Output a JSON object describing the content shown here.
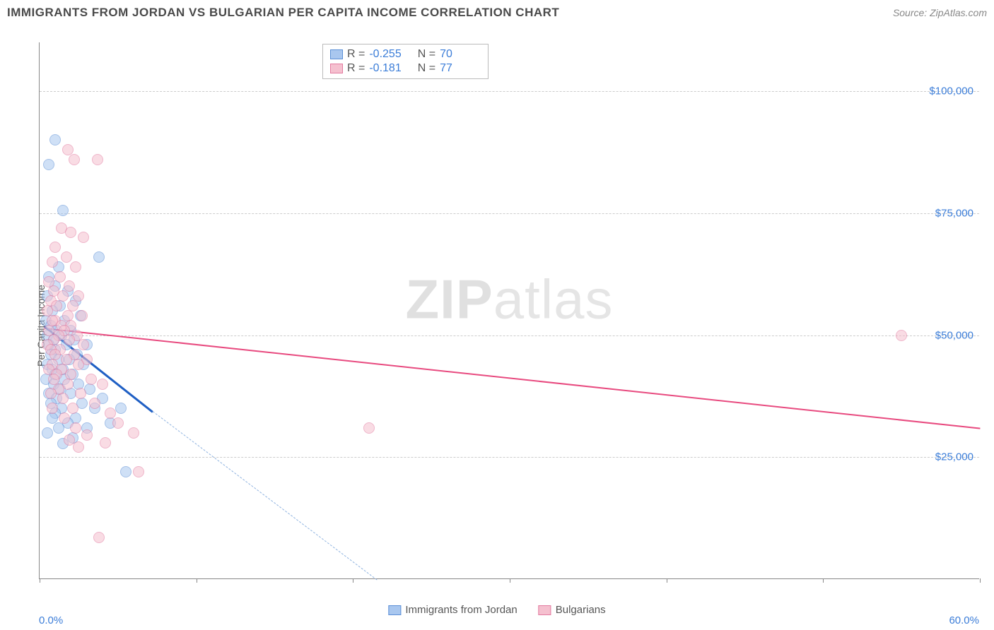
{
  "title": "IMMIGRANTS FROM JORDAN VS BULGARIAN PER CAPITA INCOME CORRELATION CHART",
  "source": "Source: ZipAtlas.com",
  "ylabel": "Per Capita Income",
  "watermark_a": "ZIP",
  "watermark_b": "atlas",
  "chart": {
    "type": "scatter",
    "xlim": [
      0,
      60
    ],
    "ylim": [
      0,
      110000
    ],
    "x_min_label": "0.0%",
    "x_max_label": "60.0%",
    "y_ticks": [
      25000,
      50000,
      75000,
      100000
    ],
    "y_tick_labels": [
      "$25,000",
      "$50,000",
      "$75,000",
      "$100,000"
    ],
    "x_ticks": [
      0,
      10,
      20,
      30,
      40,
      50,
      60
    ],
    "grid_color": "#cccccc",
    "axis_color": "#888888",
    "background_color": "#ffffff",
    "point_radius": 8,
    "point_opacity": 0.55,
    "series": [
      {
        "name": "Immigrants from Jordan",
        "fill": "#a9c7ef",
        "stroke": "#5b8fd6",
        "trend_color": "#1f5fc4",
        "trend_dash_color": "#8fb3e0",
        "R": "-0.255",
        "N": "70",
        "trend_solid": {
          "x1": 0.3,
          "y1": 52000,
          "x2": 7.2,
          "y2": 34500
        },
        "trend_dash": {
          "x1": 7.2,
          "y1": 34500,
          "x2": 21.5,
          "y2": 0
        },
        "points": [
          [
            1.0,
            90000
          ],
          [
            0.6,
            85000
          ],
          [
            1.5,
            75500
          ],
          [
            3.8,
            66000
          ],
          [
            1.2,
            64000
          ],
          [
            0.6,
            62000
          ],
          [
            1.0,
            60000
          ],
          [
            1.8,
            59000
          ],
          [
            0.5,
            58000
          ],
          [
            2.3,
            57000
          ],
          [
            1.3,
            56000
          ],
          [
            0.8,
            55000
          ],
          [
            2.6,
            54000
          ],
          [
            0.4,
            53000
          ],
          [
            1.6,
            53000
          ],
          [
            0.7,
            52000
          ],
          [
            1.1,
            51000
          ],
          [
            2.0,
            51000
          ],
          [
            0.5,
            50000
          ],
          [
            1.4,
            50000
          ],
          [
            0.9,
            49000
          ],
          [
            2.2,
            49000
          ],
          [
            1.7,
            48000
          ],
          [
            0.6,
            48000
          ],
          [
            3.0,
            48000
          ],
          [
            1.0,
            47000
          ],
          [
            2.4,
            46000
          ],
          [
            0.7,
            46000
          ],
          [
            1.9,
            45000
          ],
          [
            1.2,
            45000
          ],
          [
            0.5,
            44000
          ],
          [
            2.8,
            44000
          ],
          [
            1.5,
            43000
          ],
          [
            0.8,
            43000
          ],
          [
            2.1,
            42000
          ],
          [
            1.0,
            42000
          ],
          [
            0.4,
            41000
          ],
          [
            1.6,
            41000
          ],
          [
            2.5,
            40000
          ],
          [
            0.9,
            40000
          ],
          [
            1.3,
            39000
          ],
          [
            3.2,
            39000
          ],
          [
            0.6,
            38000
          ],
          [
            2.0,
            38000
          ],
          [
            1.1,
            37000
          ],
          [
            4.0,
            37000
          ],
          [
            0.7,
            36000
          ],
          [
            2.7,
            36000
          ],
          [
            1.4,
            35000
          ],
          [
            3.5,
            35000
          ],
          [
            5.2,
            35000
          ],
          [
            1.0,
            34000
          ],
          [
            2.3,
            33000
          ],
          [
            0.8,
            33000
          ],
          [
            1.8,
            32000
          ],
          [
            4.5,
            32000
          ],
          [
            1.2,
            31000
          ],
          [
            3.0,
            31000
          ],
          [
            0.5,
            30000
          ],
          [
            2.1,
            29000
          ],
          [
            1.5,
            27800
          ],
          [
            5.5,
            22000
          ]
        ]
      },
      {
        "name": "Bulgarians",
        "fill": "#f5c0cf",
        "stroke": "#e37ba0",
        "trend_color": "#e84a7f",
        "R": "-0.181",
        "N": "77",
        "trend_solid": {
          "x1": 0.3,
          "y1": 51500,
          "x2": 60,
          "y2": 31000
        },
        "points": [
          [
            1.8,
            88000
          ],
          [
            2.2,
            86000
          ],
          [
            3.7,
            86000
          ],
          [
            1.4,
            72000
          ],
          [
            2.0,
            71000
          ],
          [
            2.8,
            70000
          ],
          [
            1.0,
            68000
          ],
          [
            1.7,
            66000
          ],
          [
            0.8,
            65000
          ],
          [
            2.3,
            64000
          ],
          [
            1.3,
            62000
          ],
          [
            0.6,
            61000
          ],
          [
            1.9,
            60000
          ],
          [
            0.9,
            59000
          ],
          [
            2.5,
            58000
          ],
          [
            1.5,
            58000
          ],
          [
            0.7,
            57000
          ],
          [
            21.0,
            31000
          ],
          [
            2.1,
            56000
          ],
          [
            1.1,
            56000
          ],
          [
            0.5,
            55000
          ],
          [
            1.8,
            54000
          ],
          [
            2.7,
            54000
          ],
          [
            1.0,
            53000
          ],
          [
            0.8,
            53000
          ],
          [
            1.4,
            52000
          ],
          [
            2.0,
            52000
          ],
          [
            55.0,
            50000
          ],
          [
            0.6,
            51000
          ],
          [
            1.6,
            51000
          ],
          [
            2.4,
            50000
          ],
          [
            1.2,
            50000
          ],
          [
            0.9,
            49000
          ],
          [
            1.9,
            49000
          ],
          [
            0.5,
            48000
          ],
          [
            2.8,
            48000
          ],
          [
            1.3,
            47000
          ],
          [
            0.7,
            47000
          ],
          [
            2.2,
            46000
          ],
          [
            1.0,
            46000
          ],
          [
            1.7,
            45000
          ],
          [
            3.0,
            45000
          ],
          [
            0.8,
            44000
          ],
          [
            2.5,
            44000
          ],
          [
            1.4,
            43000
          ],
          [
            0.6,
            43000
          ],
          [
            2.0,
            42000
          ],
          [
            1.1,
            42000
          ],
          [
            3.3,
            41000
          ],
          [
            0.9,
            41000
          ],
          [
            1.8,
            40000
          ],
          [
            4.0,
            40000
          ],
          [
            1.2,
            39000
          ],
          [
            2.6,
            38000
          ],
          [
            0.7,
            38000
          ],
          [
            1.5,
            37000
          ],
          [
            3.5,
            36000
          ],
          [
            2.1,
            35000
          ],
          [
            0.8,
            35000
          ],
          [
            4.5,
            34000
          ],
          [
            1.6,
            33000
          ],
          [
            5.0,
            32000
          ],
          [
            2.3,
            31000
          ],
          [
            6.0,
            30000
          ],
          [
            3.0,
            29500
          ],
          [
            1.9,
            28500
          ],
          [
            4.2,
            28000
          ],
          [
            2.5,
            27000
          ],
          [
            6.3,
            22000
          ],
          [
            3.8,
            8500
          ]
        ]
      }
    ]
  },
  "legend": {
    "series1_label": "Immigrants from Jordan",
    "series2_label": "Bulgarians"
  }
}
